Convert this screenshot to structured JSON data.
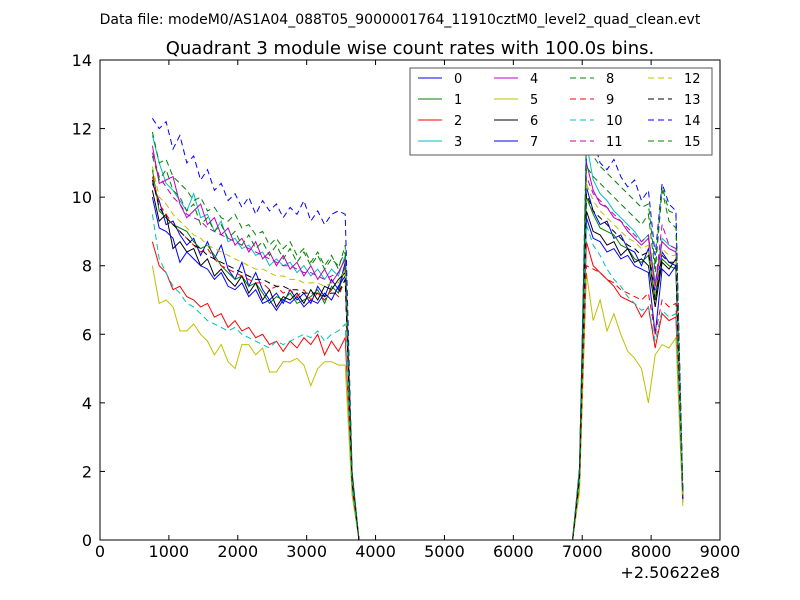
{
  "chart_data": {
    "type": "line",
    "suptitle": "Data file: modeM0/AS1A04_088T05_9000001764_11910cztM0_level2_quad_clean.evt",
    "title": "Quadrant 3 module wise count rates with 100.0s bins.",
    "xlabel": "",
    "ylabel": "",
    "x_offset_label": "+2.50622e8",
    "xlim": [
      0,
      9000
    ],
    "ylim": [
      0,
      14
    ],
    "xticks": [
      0,
      1000,
      2000,
      3000,
      4000,
      5000,
      6000,
      7000,
      8000,
      9000
    ],
    "yticks": [
      0,
      2,
      4,
      6,
      8,
      10,
      12,
      14
    ],
    "grid": false,
    "legend_position": "top-right",
    "x_a": [
      760,
      860,
      960,
      1060,
      1160,
      1260,
      1360,
      1460,
      1560,
      1660,
      1760,
      1860,
      1960,
      2060,
      2160,
      2260,
      2360,
      2460,
      2560,
      2660,
      2760,
      2860,
      2960,
      3060,
      3160,
      3260,
      3360,
      3460,
      3560,
      3660,
      3760
    ],
    "x_b": [
      6860,
      6960,
      7060,
      7160,
      7260,
      7360,
      7460,
      7560,
      7660,
      7760,
      7860,
      7960,
      8060,
      8160,
      8260,
      8360,
      8460
    ],
    "series": [
      {
        "name": "0",
        "color": "#0000ff",
        "dash": "solid",
        "a_values": [
          10.4,
          9.9,
          9.2,
          9.3,
          8.9,
          8.6,
          8.8,
          8.3,
          8.7,
          8.2,
          8.6,
          7.9,
          7.6,
          8.1,
          7.4,
          7.8,
          7.3,
          7.0,
          7.2,
          6.9,
          7.3,
          7.0,
          7.2,
          6.9,
          7.4,
          7.1,
          7.6,
          7.3,
          8.1,
          1.8,
          0.0
        ],
        "b_values": [
          0.0,
          1.9,
          10.3,
          9.6,
          9.2,
          9.3,
          8.8,
          8.9,
          8.5,
          8.4,
          8.0,
          8.5,
          7.2,
          8.4,
          8.1,
          8.0,
          1.3
        ]
      },
      {
        "name": "1",
        "color": "#008000",
        "dash": "solid",
        "a_values": [
          10.8,
          9.6,
          9.4,
          9.2,
          9.1,
          9.0,
          8.7,
          8.5,
          8.6,
          8.3,
          8.0,
          7.8,
          7.6,
          7.7,
          7.4,
          7.5,
          7.2,
          6.9,
          7.1,
          7.0,
          7.2,
          6.9,
          7.0,
          7.1,
          7.3,
          6.9,
          7.4,
          7.2,
          8.0,
          1.7,
          0.0
        ],
        "b_values": [
          0.0,
          1.8,
          10.0,
          9.5,
          9.1,
          9.0,
          8.9,
          8.6,
          8.5,
          8.2,
          8.1,
          8.3,
          7.0,
          8.2,
          8.0,
          7.9,
          1.2
        ]
      },
      {
        "name": "2",
        "color": "#ff0000",
        "dash": "solid",
        "a_values": [
          8.7,
          8.0,
          7.8,
          7.3,
          7.4,
          7.1,
          7.0,
          6.8,
          6.9,
          6.5,
          6.6,
          6.2,
          6.4,
          6.1,
          6.2,
          5.9,
          6.0,
          5.7,
          5.8,
          5.5,
          5.8,
          5.6,
          5.9,
          5.7,
          6.0,
          5.4,
          5.8,
          5.5,
          5.9,
          1.5,
          0.0
        ],
        "b_values": [
          0.0,
          1.6,
          8.7,
          8.0,
          7.8,
          7.6,
          7.4,
          7.1,
          7.0,
          6.9,
          6.5,
          6.8,
          5.6,
          6.6,
          6.4,
          6.5,
          1.1
        ]
      },
      {
        "name": "3",
        "color": "#00bfbf",
        "dash": "solid",
        "a_values": [
          11.8,
          11.0,
          10.4,
          10.2,
          9.9,
          9.6,
          10.1,
          9.4,
          9.5,
          9.0,
          9.3,
          8.7,
          8.8,
          8.5,
          8.6,
          8.3,
          8.4,
          8.0,
          8.2,
          8.0,
          8.1,
          7.8,
          8.0,
          7.7,
          7.9,
          7.6,
          7.9,
          7.7,
          8.3,
          1.9,
          0.0
        ],
        "b_values": [
          0.0,
          2.0,
          11.6,
          10.5,
          10.1,
          9.9,
          9.6,
          9.4,
          9.2,
          9.0,
          8.7,
          8.9,
          7.5,
          8.8,
          8.6,
          8.5,
          1.4
        ]
      },
      {
        "name": "4",
        "color": "#bf00bf",
        "dash": "solid",
        "a_values": [
          11.5,
          10.4,
          10.5,
          10.6,
          9.8,
          9.4,
          9.6,
          9.8,
          9.2,
          9.4,
          8.9,
          9.1,
          8.6,
          8.8,
          8.4,
          8.7,
          8.2,
          8.4,
          8.0,
          8.3,
          7.9,
          8.1,
          7.7,
          8.0,
          7.6,
          7.9,
          7.5,
          7.8,
          8.2,
          1.9,
          0.0
        ],
        "b_values": [
          0.0,
          2.0,
          11.0,
          10.2,
          9.8,
          9.7,
          9.4,
          9.3,
          9.0,
          8.8,
          8.6,
          8.8,
          7.4,
          8.7,
          8.5,
          8.4,
          1.4
        ]
      },
      {
        "name": "5",
        "color": "#bfbf00",
        "dash": "solid",
        "a_values": [
          8.0,
          6.9,
          7.0,
          6.8,
          6.1,
          6.1,
          6.3,
          6.0,
          5.8,
          5.4,
          5.7,
          5.2,
          5.0,
          5.7,
          5.7,
          5.4,
          5.6,
          4.9,
          4.9,
          5.2,
          5.2,
          5.3,
          5.1,
          4.5,
          5.0,
          5.2,
          5.2,
          5.1,
          5.1,
          1.3,
          0.0
        ],
        "b_values": [
          0.0,
          1.4,
          7.8,
          6.4,
          7.0,
          6.1,
          6.6,
          6.0,
          5.5,
          5.3,
          5.0,
          4.0,
          5.4,
          5.7,
          5.6,
          5.9,
          1.0
        ]
      },
      {
        "name": "6",
        "color": "#000000",
        "dash": "solid",
        "a_values": [
          10.2,
          9.3,
          9.5,
          8.5,
          8.7,
          8.4,
          8.5,
          8.0,
          8.2,
          7.7,
          7.9,
          7.6,
          7.4,
          7.7,
          7.2,
          7.5,
          7.0,
          7.3,
          6.8,
          7.1,
          7.0,
          7.2,
          6.9,
          7.3,
          7.0,
          7.4,
          7.3,
          7.6,
          7.8,
          1.7,
          0.0
        ],
        "b_values": [
          0.0,
          1.8,
          9.6,
          9.0,
          8.9,
          8.6,
          8.7,
          8.3,
          8.5,
          8.1,
          8.2,
          8.0,
          6.8,
          8.1,
          7.9,
          8.2,
          1.2
        ]
      },
      {
        "name": "7",
        "color": "#0000ff",
        "dash": "solid",
        "a_values": [
          10.0,
          9.1,
          9.0,
          8.8,
          8.1,
          8.4,
          8.2,
          8.0,
          7.9,
          7.6,
          7.8,
          7.4,
          7.3,
          7.5,
          7.1,
          7.3,
          6.9,
          7.0,
          6.7,
          7.0,
          6.9,
          7.1,
          6.8,
          7.0,
          6.9,
          7.2,
          7.0,
          7.4,
          7.7,
          1.7,
          0.0
        ],
        "b_values": [
          0.0,
          1.8,
          9.4,
          8.8,
          8.7,
          8.4,
          8.5,
          8.2,
          8.3,
          8.0,
          7.9,
          7.8,
          6.0,
          7.9,
          7.7,
          8.0,
          1.2
        ]
      },
      {
        "name": "8",
        "color": "#008000",
        "dash": "dashed",
        "a_values": [
          11.9,
          11.0,
          11.1,
          10.6,
          10.4,
          10.2,
          9.9,
          10.0,
          9.6,
          9.7,
          9.4,
          9.3,
          9.5,
          9.1,
          9.2,
          8.9,
          9.0,
          8.6,
          8.8,
          8.5,
          8.7,
          8.3,
          8.5,
          8.1,
          8.4,
          8.0,
          8.3,
          7.9,
          8.6,
          2.0,
          0.0
        ],
        "b_values": [
          0.0,
          2.1,
          11.8,
          11.2,
          10.9,
          10.7,
          10.5,
          10.3,
          10.1,
          9.9,
          9.7,
          9.8,
          8.0,
          10.3,
          9.6,
          9.5,
          1.5
        ]
      },
      {
        "name": "9",
        "color": "#ff0000",
        "dash": "dashed",
        "a_values": [
          10.6,
          9.8,
          9.5,
          9.2,
          9.0,
          8.8,
          8.6,
          8.4,
          8.5,
          8.2,
          8.0,
          7.9,
          7.8,
          7.7,
          7.6,
          7.5,
          7.5,
          7.3,
          7.4,
          7.2,
          7.3,
          7.1,
          7.3,
          7.0,
          7.2,
          7.0,
          7.3,
          7.1,
          7.6,
          1.7,
          0.0
        ],
        "b_values": [
          0.0,
          1.8,
          8.0,
          7.9,
          7.8,
          7.6,
          7.5,
          7.3,
          7.2,
          7.1,
          7.0,
          7.2,
          6.0,
          7.0,
          6.8,
          6.9,
          1.2
        ]
      },
      {
        "name": "10",
        "color": "#00bfbf",
        "dash": "dashed",
        "a_values": [
          9.5,
          8.2,
          7.8,
          7.4,
          7.2,
          6.9,
          6.8,
          6.6,
          6.4,
          6.3,
          6.2,
          6.1,
          6.2,
          6.0,
          5.9,
          5.8,
          5.7,
          5.6,
          5.8,
          5.7,
          5.8,
          5.9,
          6.0,
          5.9,
          6.1,
          5.8,
          6.0,
          6.1,
          6.3,
          1.5,
          0.0
        ],
        "b_values": [
          0.0,
          1.7,
          9.2,
          8.6,
          8.3,
          7.9,
          7.6,
          7.4,
          7.1,
          6.9,
          6.7,
          6.8,
          5.8,
          6.7,
          6.5,
          6.6,
          1.2
        ]
      },
      {
        "name": "11",
        "color": "#bf00bf",
        "dash": "dashed",
        "a_values": [
          11.3,
          10.6,
          10.3,
          10.0,
          9.8,
          9.5,
          9.4,
          9.3,
          9.1,
          9.0,
          8.9,
          8.8,
          8.7,
          8.6,
          8.5,
          8.4,
          8.3,
          8.2,
          8.1,
          8.0,
          8.0,
          7.9,
          7.8,
          7.8,
          7.7,
          7.6,
          7.7,
          7.8,
          8.2,
          1.9,
          0.0
        ],
        "b_values": [
          0.0,
          2.0,
          10.6,
          10.1,
          9.9,
          9.7,
          9.5,
          9.3,
          9.1,
          8.9,
          8.7,
          8.9,
          7.4,
          9.2,
          8.6,
          8.5,
          1.4
        ]
      },
      {
        "name": "12",
        "color": "#bfbf00",
        "dash": "dashed",
        "a_values": [
          10.9,
          10.0,
          9.8,
          9.5,
          9.3,
          9.1,
          8.9,
          8.8,
          8.6,
          8.5,
          8.4,
          8.3,
          8.2,
          8.1,
          8.0,
          7.9,
          7.9,
          7.8,
          7.7,
          7.7,
          7.6,
          7.6,
          7.5,
          7.5,
          7.5,
          7.4,
          7.5,
          7.5,
          7.9,
          1.8,
          0.0
        ],
        "b_values": [
          0.0,
          1.9,
          10.4,
          9.9,
          9.6,
          9.4,
          9.2,
          9.0,
          8.8,
          8.7,
          8.5,
          8.6,
          7.2,
          8.5,
          8.3,
          8.3,
          1.3
        ]
      },
      {
        "name": "13",
        "color": "#000000",
        "dash": "dashed",
        "a_values": [
          10.5,
          9.7,
          9.4,
          9.2,
          9.0,
          8.8,
          8.6,
          8.5,
          8.3,
          8.2,
          8.1,
          8.0,
          7.9,
          7.8,
          7.7,
          7.6,
          7.6,
          7.5,
          7.4,
          7.4,
          7.3,
          7.3,
          7.2,
          7.2,
          7.2,
          7.1,
          7.2,
          7.2,
          7.6,
          1.7,
          0.0
        ],
        "b_values": [
          0.0,
          1.8,
          10.1,
          9.6,
          9.4,
          9.2,
          9.0,
          8.8,
          8.6,
          8.5,
          8.3,
          8.4,
          7.0,
          8.3,
          8.1,
          8.1,
          1.3
        ]
      },
      {
        "name": "14",
        "color": "#0000ff",
        "dash": "dashed",
        "a_values": [
          12.3,
          12.0,
          12.2,
          11.4,
          11.8,
          11.0,
          11.2,
          10.5,
          10.8,
          10.2,
          10.4,
          9.9,
          10.1,
          9.7,
          10.0,
          9.5,
          9.9,
          9.6,
          9.8,
          9.4,
          9.7,
          9.5,
          9.9,
          9.3,
          9.6,
          9.2,
          9.5,
          9.6,
          9.5,
          2.0,
          0.0
        ],
        "b_values": [
          0.0,
          2.1,
          11.2,
          11.7,
          11.0,
          10.8,
          11.1,
          10.6,
          10.3,
          10.5,
          9.9,
          10.2,
          8.3,
          10.4,
          9.8,
          9.6,
          1.5
        ]
      },
      {
        "name": "15",
        "color": "#008000",
        "dash": "dashed",
        "a_values": [
          11.2,
          10.5,
          10.8,
          10.2,
          10.0,
          9.6,
          9.8,
          9.2,
          9.4,
          9.0,
          9.2,
          8.8,
          9.0,
          8.6,
          8.9,
          8.5,
          8.7,
          8.3,
          8.6,
          8.2,
          8.5,
          8.1,
          8.4,
          8.0,
          8.3,
          7.9,
          8.2,
          8.0,
          8.4,
          1.9,
          0.0
        ],
        "b_values": [
          0.0,
          2.0,
          10.9,
          10.6,
          10.4,
          10.2,
          10.0,
          9.8,
          9.6,
          9.4,
          9.2,
          9.5,
          7.8,
          10.2,
          9.3,
          9.1,
          1.4
        ]
      }
    ],
    "baseline_segment": {
      "x": [
        3760,
        6860
      ],
      "y": 0
    }
  }
}
